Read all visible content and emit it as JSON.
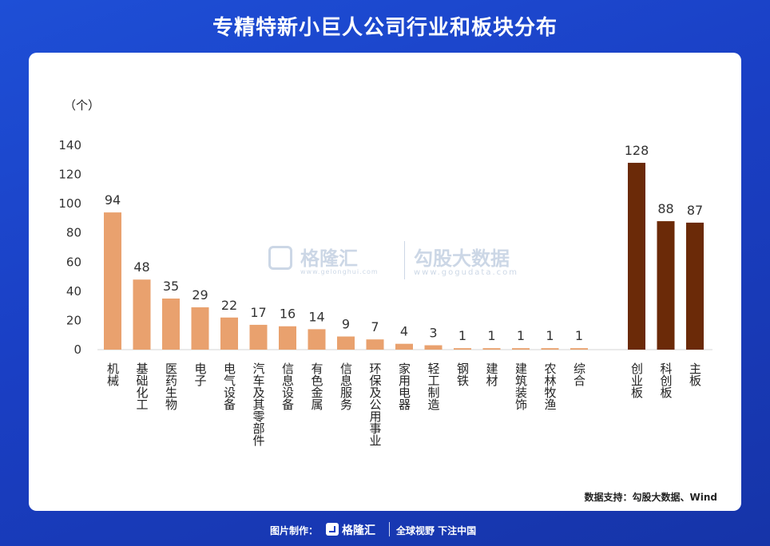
{
  "header": {
    "title": "专精特新小巨人公司行业和板块分布"
  },
  "chart_data": {
    "type": "bar",
    "title": "专精特新小巨人公司行业和板块分布",
    "ylabel": "（个）",
    "ylim": [
      0,
      140
    ],
    "yticks": [
      0,
      20,
      40,
      60,
      80,
      100,
      120,
      140
    ],
    "grid": false,
    "legend": "none",
    "series": [
      {
        "categories": [
          "机械",
          "基础化工",
          "医药生物",
          "电子",
          "电气设备",
          "汽车及其零部件",
          "信息设备",
          "有色金属",
          "信息服务",
          "环保及公用事业",
          "家用电器",
          "轻工制造",
          "钢铁",
          "建材",
          "建筑装饰",
          "农林牧渔",
          "综合"
        ],
        "values": [
          94,
          48,
          35,
          29,
          22,
          17,
          16,
          14,
          9,
          7,
          4,
          3,
          1,
          1,
          1,
          1,
          1
        ],
        "color": "#e9a16e"
      },
      {
        "categories": [
          "创业板",
          "科创板",
          "主板"
        ],
        "values": [
          128,
          88,
          87
        ],
        "color": "#6b2a08"
      }
    ]
  },
  "watermark": {
    "brand1": "格隆汇",
    "sub1": "www.gelonghui.com",
    "brand2": "勾股大数据",
    "sub2": "www.gogudata.com"
  },
  "source": "数据支持：勾股大数据、Wind",
  "footer": {
    "credit": "图片制作：",
    "brand": "格隆汇",
    "slogan": "全球视野 下注中国"
  }
}
